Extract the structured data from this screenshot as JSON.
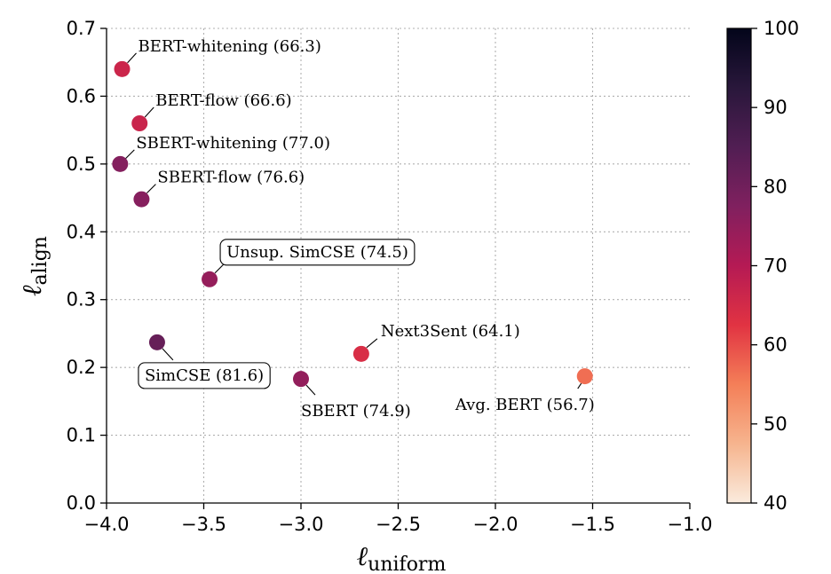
{
  "chart_data": {
    "type": "scatter",
    "title": "",
    "xlabel_main": "ℓ",
    "xlabel_sub": "uniform",
    "ylabel_main": "ℓ",
    "ylabel_sub": "align",
    "xlim": [
      -4.0,
      -1.0
    ],
    "ylim": [
      0.0,
      0.7
    ],
    "xticks": [
      -4.0,
      -3.5,
      -3.0,
      -2.5,
      -2.0,
      -1.5,
      -1.0
    ],
    "xtick_labels": [
      "−4.0",
      "−3.5",
      "−3.0",
      "−2.5",
      "−2.0",
      "−1.5",
      "−1.0"
    ],
    "yticks": [
      0.0,
      0.1,
      0.2,
      0.3,
      0.4,
      0.5,
      0.6,
      0.7
    ],
    "ytick_labels": [
      "0.0",
      "0.1",
      "0.2",
      "0.3",
      "0.4",
      "0.5",
      "0.6",
      "0.7"
    ],
    "grid": true,
    "colorbar": {
      "min": 40,
      "max": 100,
      "ticks": [
        40,
        50,
        60,
        70,
        80,
        90,
        100
      ],
      "tick_labels": [
        "40",
        "50",
        "60",
        "70",
        "80",
        "90",
        "100"
      ],
      "colormap": "rocket_r",
      "stops": [
        "#faebdd",
        "#f6b48e",
        "#f47f58",
        "#e13342",
        "#b51a54",
        "#80205f",
        "#511e53",
        "#29173b",
        "#03051a"
      ]
    },
    "points": [
      {
        "name": "BERT-whitening",
        "score_label": "(66.3)",
        "x": -3.92,
        "y": 0.64,
        "score": 66.3,
        "boxed": false
      },
      {
        "name": "BERT-flow",
        "score_label": "(66.6)",
        "x": -3.83,
        "y": 0.56,
        "score": 66.6,
        "boxed": false
      },
      {
        "name": "SBERT-whitening",
        "score_label": "(77.0)",
        "x": -3.93,
        "y": 0.5,
        "score": 77.0,
        "boxed": false
      },
      {
        "name": "SBERT-flow",
        "score_label": "(76.6)",
        "x": -3.82,
        "y": 0.448,
        "score": 76.6,
        "boxed": false
      },
      {
        "name": "Unsup. SimCSE",
        "score_label": "(74.5)",
        "x": -3.47,
        "y": 0.33,
        "score": 74.5,
        "boxed": true
      },
      {
        "name": "SimCSE",
        "score_label": "(81.6)",
        "x": -3.74,
        "y": 0.237,
        "score": 81.6,
        "boxed": true
      },
      {
        "name": "Next3Sent",
        "score_label": "(64.1)",
        "x": -2.69,
        "y": 0.22,
        "score": 64.1,
        "boxed": false
      },
      {
        "name": "SBERT",
        "score_label": "(74.9)",
        "x": -3.0,
        "y": 0.183,
        "score": 74.9,
        "boxed": false
      },
      {
        "name": "Avg. BERT",
        "score_label": "(56.7)",
        "x": -1.54,
        "y": 0.187,
        "score": 56.7,
        "boxed": false
      }
    ]
  }
}
